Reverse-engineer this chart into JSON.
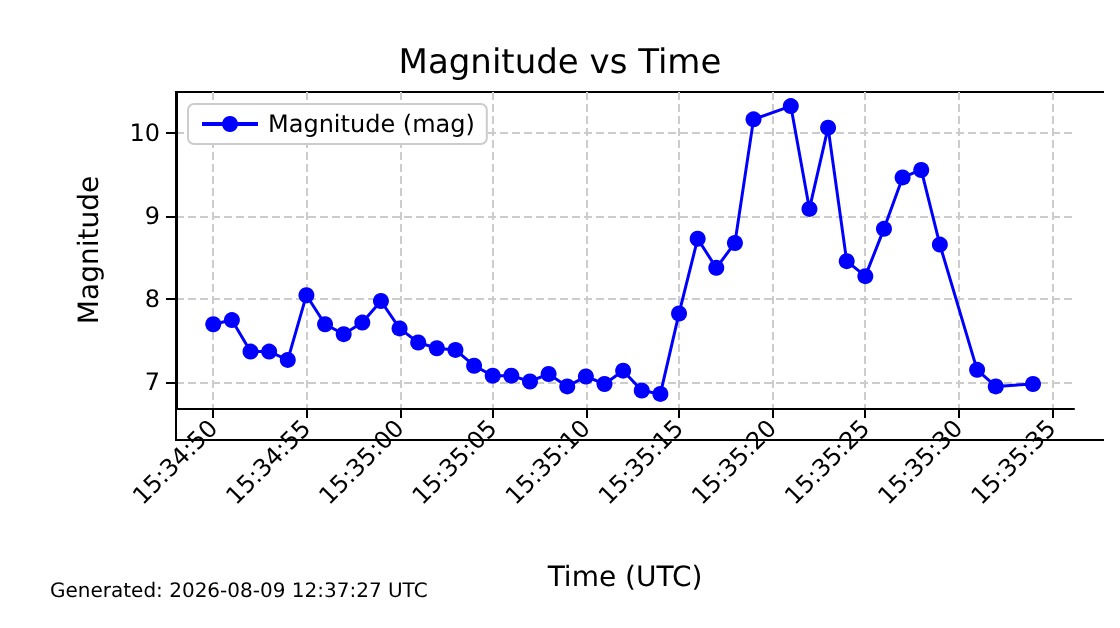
{
  "chart_data": {
    "type": "line",
    "title": "Magnitude vs Time",
    "xlabel": "Time (UTC)",
    "ylabel": "Magnitude",
    "annotations": [
      "Generated: 2026-08-09 12:37:27 UTC"
    ],
    "x": [
      "2026-08-09T15:34:50",
      "2026-08-09T15:34:51",
      "2026-08-09T15:34:52",
      "2026-08-09T15:34:53",
      "2026-08-09T15:34:54",
      "2026-08-09T15:34:55",
      "2026-08-09T15:34:56",
      "2026-08-09T15:34:57",
      "2026-08-09T15:34:58",
      "2026-08-09T15:34:59",
      "2026-08-09T15:35:00",
      "2026-08-09T15:35:01",
      "2026-08-09T15:35:02",
      "2026-08-09T15:35:03",
      "2026-08-09T15:35:04",
      "2026-08-09T15:35:05",
      "2026-08-09T15:35:06",
      "2026-08-09T15:35:07",
      "2026-08-09T15:35:08",
      "2026-08-09T15:35:09",
      "2026-08-09T15:35:10",
      "2026-08-09T15:35:11",
      "2026-08-09T15:35:12",
      "2026-08-09T15:35:13",
      "2026-08-09T15:35:14",
      "2026-08-09T15:35:15",
      "2026-08-09T15:35:16",
      "2026-08-09T15:35:17",
      "2026-08-09T15:35:18",
      "2026-08-09T15:35:19",
      "2026-08-09T15:35:21",
      "2026-08-09T15:35:22",
      "2026-08-09T15:35:23",
      "2026-08-09T15:35:24",
      "2026-08-09T15:35:25",
      "2026-08-09T15:35:26",
      "2026-08-09T15:35:27",
      "2026-08-09T15:35:28",
      "2026-08-09T15:35:29",
      "2026-08-09T15:35:31",
      "2026-08-09T15:35:32",
      "2026-08-09T15:35:34"
    ],
    "series": [
      {
        "name": "Magnitude (mag)",
        "color": "#0000ff",
        "values": [
          7.7,
          7.75,
          7.37,
          7.37,
          7.27,
          8.05,
          7.7,
          7.58,
          7.72,
          7.98,
          7.65,
          7.48,
          7.41,
          7.39,
          7.2,
          7.08,
          7.08,
          7.01,
          7.1,
          6.95,
          7.07,
          6.98,
          7.14,
          6.9,
          6.86,
          7.83,
          8.73,
          8.38,
          8.68,
          10.17,
          10.33,
          9.09,
          10.07,
          8.46,
          8.28,
          8.85,
          9.47,
          9.56,
          8.66,
          7.15,
          6.95,
          6.98
        ]
      }
    ],
    "xlim": [
      "2026-08-09T15:34:48",
      "2026-08-09T15:35:36.2"
    ],
    "xticks": [
      {
        "value": "2026-08-09T15:34:50",
        "label": "15:34:50"
      },
      {
        "value": "2026-08-09T15:34:55",
        "label": "15:34:55"
      },
      {
        "value": "2026-08-09T15:35:00",
        "label": "15:35:00"
      },
      {
        "value": "2026-08-09T15:35:05",
        "label": "15:35:05"
      },
      {
        "value": "2026-08-09T15:35:10",
        "label": "15:35:10"
      },
      {
        "value": "2026-08-09T15:35:15",
        "label": "15:35:15"
      },
      {
        "value": "2026-08-09T15:35:20",
        "label": "15:35:20"
      },
      {
        "value": "2026-08-09T15:35:25",
        "label": "15:35:25"
      },
      {
        "value": "2026-08-09T15:35:30",
        "label": "15:35:30"
      },
      {
        "value": "2026-08-09T15:35:35",
        "label": "15:35:35"
      }
    ],
    "ylim": [
      6.69,
      10.5
    ],
    "yticks": [
      7,
      8,
      9,
      10
    ],
    "grid": true,
    "legend": "top left",
    "marker": "circle",
    "line_style": "solid"
  }
}
